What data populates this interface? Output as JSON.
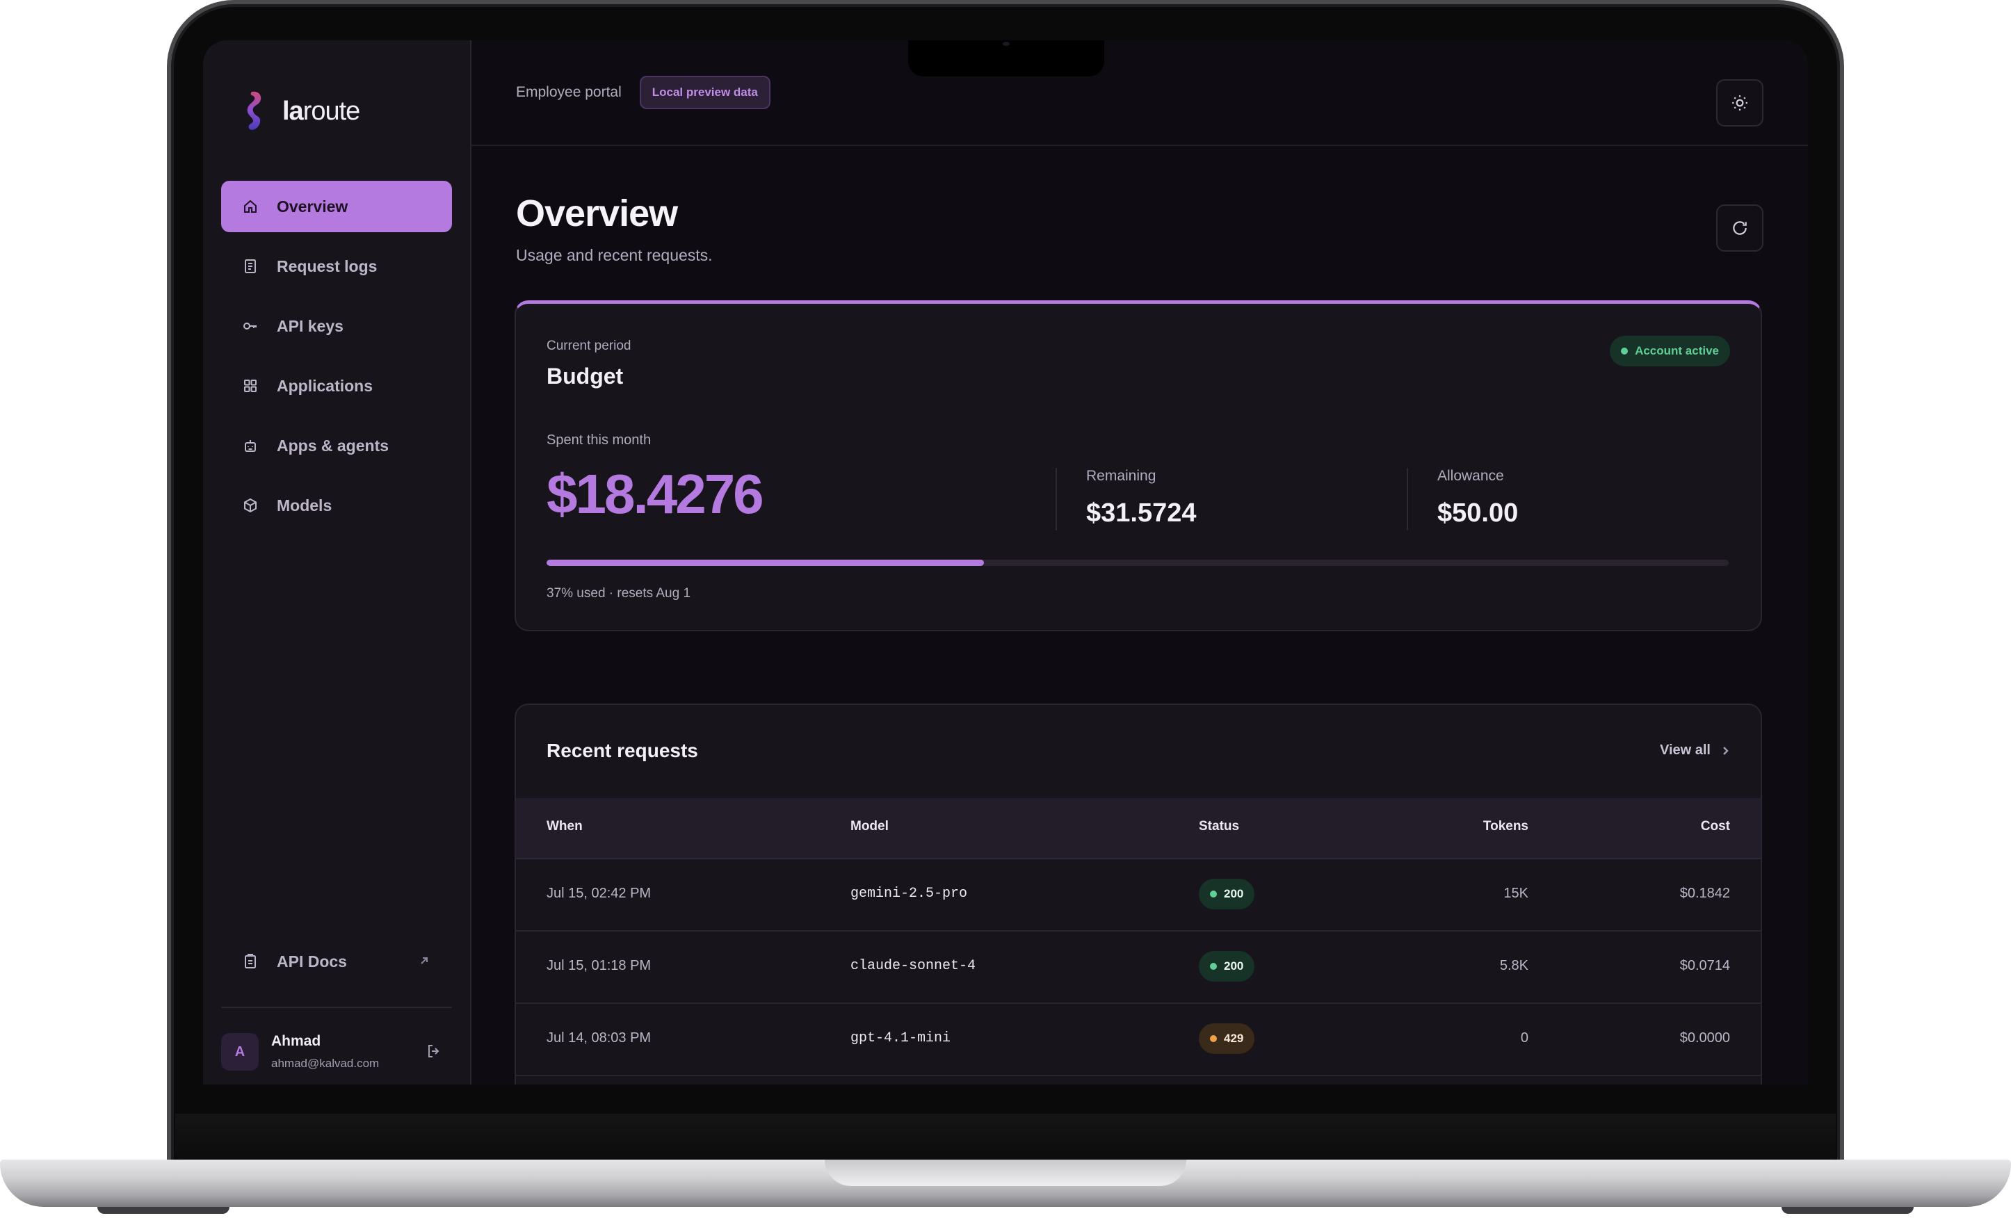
{
  "brand": {
    "name_bold": "la",
    "name_rest": "route"
  },
  "nav": [
    {
      "label": "Overview",
      "icon": "home-icon",
      "active": true
    },
    {
      "label": "Request logs",
      "icon": "document-icon",
      "active": false
    },
    {
      "label": "API keys",
      "icon": "key-icon",
      "active": false
    },
    {
      "label": "Applications",
      "icon": "grid-icon",
      "active": false
    },
    {
      "label": "Apps & agents",
      "icon": "robot-icon",
      "active": false
    },
    {
      "label": "Models",
      "icon": "cube-icon",
      "active": false
    }
  ],
  "sidebar_footer": {
    "api_docs": "API Docs",
    "api_docs_icon": "external-link-icon"
  },
  "user": {
    "initial": "A",
    "name": "Ahmad",
    "email": "ahmad@kalvad.com"
  },
  "topbar": {
    "crumb": "Employee portal",
    "badge": "Local preview data",
    "theme_icon": "sun-icon"
  },
  "page": {
    "title": "Overview",
    "subtitle": "Usage and recent requests.",
    "refresh_icon": "refresh-icon"
  },
  "budget": {
    "label": "Current period",
    "title": "Budget",
    "status": "Account active",
    "spent_label": "Spent this month",
    "spent_value": "$18.4276",
    "remaining_label": "Remaining",
    "remaining_value": "$31.5724",
    "allowance_label": "Allowance",
    "allowance_value": "$50.00",
    "used_fraction": 0.37,
    "progress_text": "37% used · resets Aug 1"
  },
  "recent": {
    "title": "Recent requests",
    "view_all": "View all",
    "columns": [
      "When",
      "Model",
      "Status",
      "Tokens",
      "Cost"
    ],
    "rows": [
      {
        "when": "Jul 15, 02:42 PM",
        "model": "gemini-2.5-pro",
        "status": "200",
        "tokens": "15K",
        "cost": "$0.1842"
      },
      {
        "when": "Jul 15, 01:18 PM",
        "model": "claude-sonnet-4",
        "status": "200",
        "tokens": "5.8K",
        "cost": "$0.0714"
      },
      {
        "when": "Jul 14, 08:03 PM",
        "model": "gpt-4.1-mini",
        "status": "429",
        "tokens": "0",
        "cost": "$0.0000"
      }
    ]
  },
  "colors": {
    "accent": "#b57ae0",
    "success": "#5fcf95",
    "warning": "#f0a24a"
  }
}
